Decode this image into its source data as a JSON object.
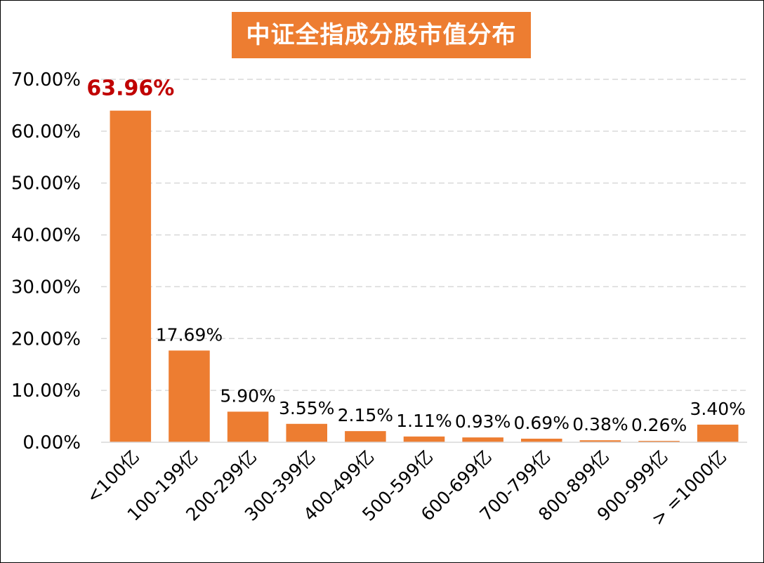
{
  "chart_data": {
    "type": "bar",
    "title": "中证全指成分股市值分布",
    "categories": [
      "<100亿",
      "100-199亿",
      "200-299亿",
      "300-399亿",
      "400-499亿",
      "500-599亿",
      "600-699亿",
      "700-799亿",
      "800-899亿",
      "900-999亿",
      "> =1000亿"
    ],
    "values": [
      63.96,
      17.69,
      5.9,
      3.55,
      2.15,
      1.11,
      0.93,
      0.69,
      0.38,
      0.26,
      3.4
    ],
    "data_labels": [
      "63.96%",
      "17.69%",
      "5.90%",
      "3.55%",
      "2.15%",
      "1.11%",
      "0.93%",
      "0.69%",
      "0.38%",
      "0.26%",
      "3.40%"
    ],
    "highlighted_index": 0,
    "ylim": [
      0,
      70
    ],
    "yticks": [
      0,
      10,
      20,
      30,
      40,
      50,
      60,
      70
    ],
    "ytick_labels": [
      "0.00%",
      "10.00%",
      "20.00%",
      "30.00%",
      "40.00%",
      "50.00%",
      "60.00%",
      "70.00%"
    ],
    "grid": true,
    "colors": {
      "bar": "#ED7D31",
      "title_bg": "#ED7D31",
      "highlight_label": "#C00000",
      "grid": "#D9D9D9"
    }
  }
}
